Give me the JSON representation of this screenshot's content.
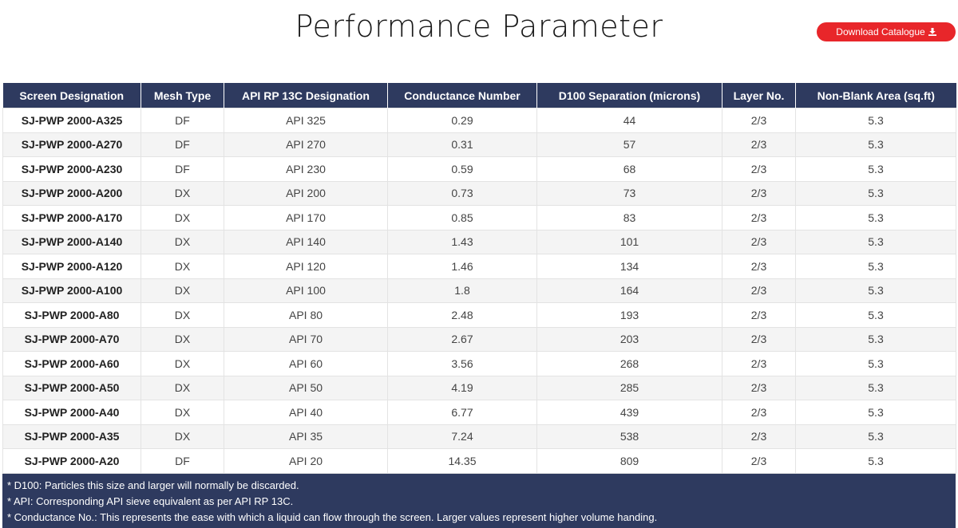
{
  "header": {
    "title": "Performance Parameter",
    "download_label": "Download Catalogue"
  },
  "table": {
    "columns": [
      "Screen Designation",
      "Mesh Type",
      "API RP 13C Designation",
      "Conductance Number",
      "D100 Separation (microns)",
      "Layer No.",
      "Non-Blank Area (sq.ft)"
    ],
    "rows": [
      [
        "SJ-PWP 2000-A325",
        "DF",
        "API 325",
        "0.29",
        "44",
        "2/3",
        "5.3"
      ],
      [
        "SJ-PWP 2000-A270",
        "DF",
        "API 270",
        "0.31",
        "57",
        "2/3",
        "5.3"
      ],
      [
        "SJ-PWP 2000-A230",
        "DF",
        "API 230",
        "0.59",
        "68",
        "2/3",
        "5.3"
      ],
      [
        "SJ-PWP 2000-A200",
        "DX",
        "API 200",
        "0.73",
        "73",
        "2/3",
        "5.3"
      ],
      [
        "SJ-PWP 2000-A170",
        "DX",
        "API 170",
        "0.85",
        "83",
        "2/3",
        "5.3"
      ],
      [
        "SJ-PWP 2000-A140",
        "DX",
        "API 140",
        "1.43",
        "101",
        "2/3",
        "5.3"
      ],
      [
        "SJ-PWP 2000-A120",
        "DX",
        "API 120",
        "1.46",
        "134",
        "2/3",
        "5.3"
      ],
      [
        "SJ-PWP 2000-A100",
        "DX",
        "API 100",
        "1.8",
        "164",
        "2/3",
        "5.3"
      ],
      [
        "SJ-PWP 2000-A80",
        "DX",
        "API 80",
        "2.48",
        "193",
        "2/3",
        "5.3"
      ],
      [
        "SJ-PWP 2000-A70",
        "DX",
        "API 70",
        "2.67",
        "203",
        "2/3",
        "5.3"
      ],
      [
        "SJ-PWP 2000-A60",
        "DX",
        "API 60",
        "3.56",
        "268",
        "2/3",
        "5.3"
      ],
      [
        "SJ-PWP 2000-A50",
        "DX",
        "API 50",
        "4.19",
        "285",
        "2/3",
        "5.3"
      ],
      [
        "SJ-PWP 2000-A40",
        "DX",
        "API 40",
        "6.77",
        "439",
        "2/3",
        "5.3"
      ],
      [
        "SJ-PWP 2000-A35",
        "DX",
        "API 35",
        "7.24",
        "538",
        "2/3",
        "5.3"
      ],
      [
        "SJ-PWP 2000-A20",
        "DF",
        "API 20",
        "14.35",
        "809",
        "2/3",
        "5.3"
      ]
    ]
  },
  "notes": [
    "* D100: Particles this size and larger will normally be discarded.",
    "* API: Corresponding API sieve equivalent as per API RP 13C.",
    "* Conductance No.: This represents the ease with which a liquid can flow through the screen. Larger values represent higher volume handing."
  ],
  "colors": {
    "header_bg": "#2e3a5f",
    "button_bg": "#e8262a"
  },
  "icons": {
    "download": "download-icon"
  }
}
